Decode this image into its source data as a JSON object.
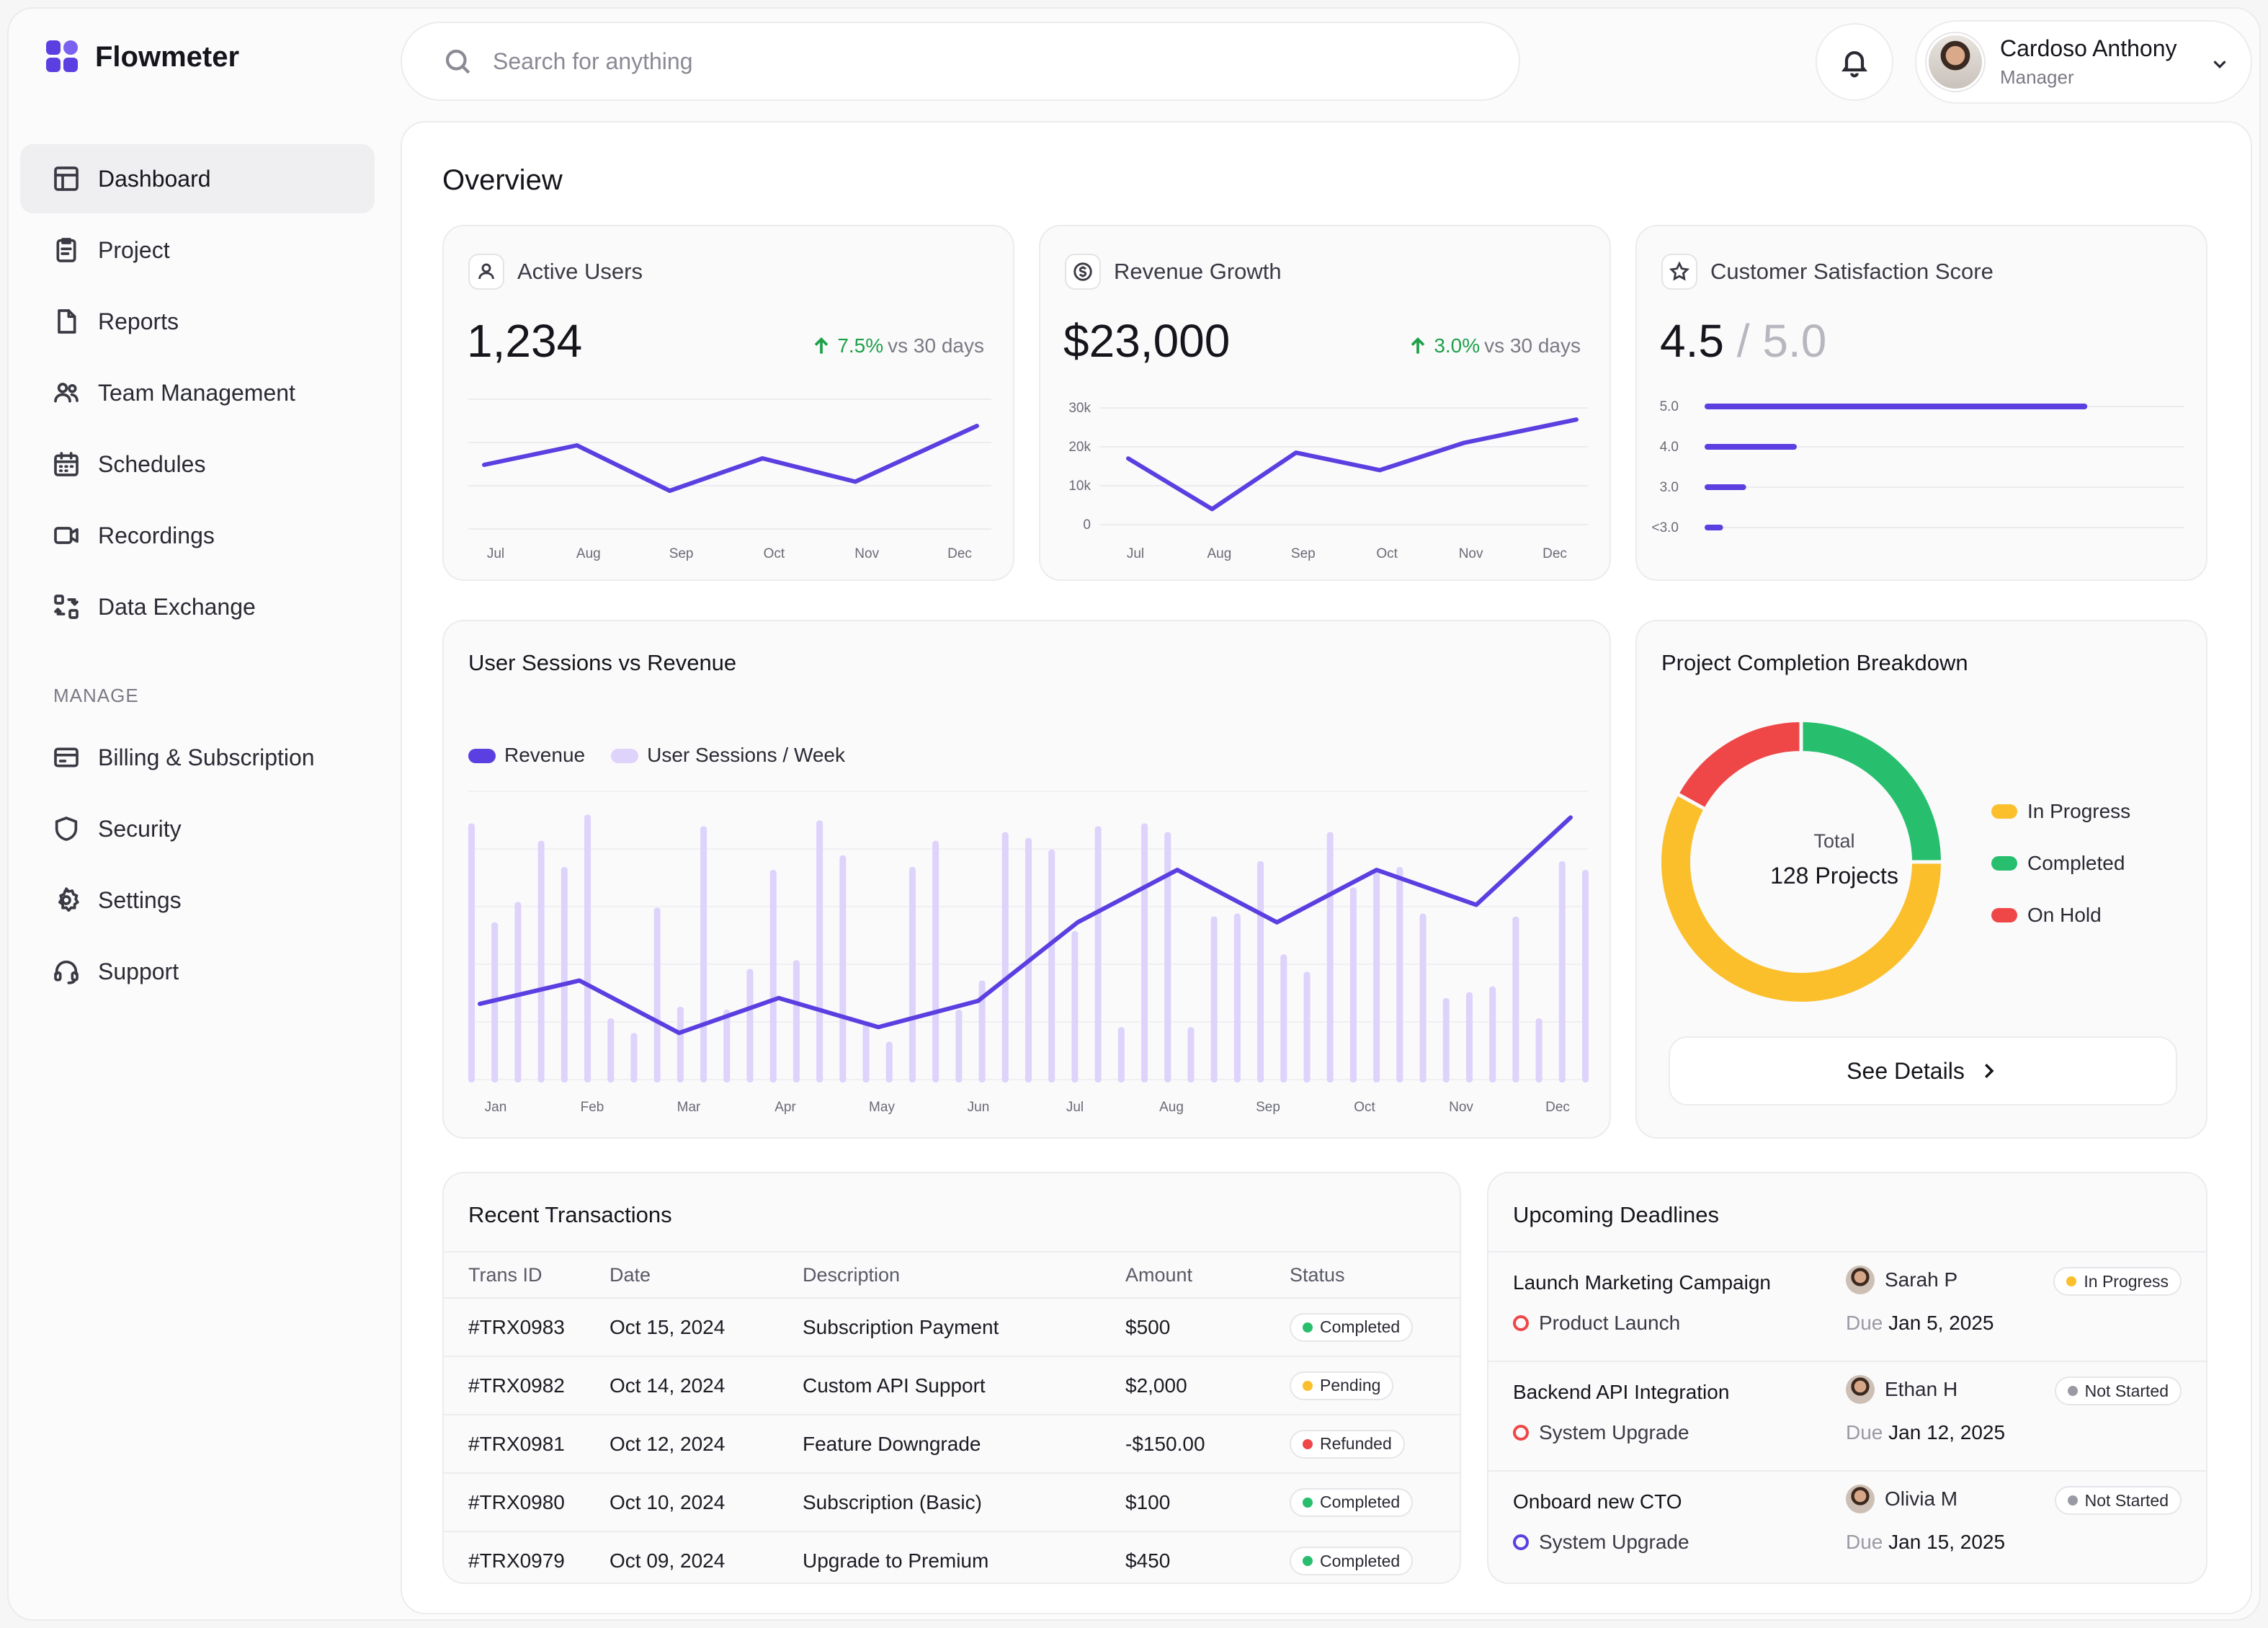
{
  "app": {
    "name": "Flowmeter"
  },
  "sidebar": {
    "items": [
      {
        "label": "Dashboard",
        "icon": "dashboard-icon"
      },
      {
        "label": "Project",
        "icon": "clipboard-icon"
      },
      {
        "label": "Reports",
        "icon": "file-icon"
      },
      {
        "label": "Team Management",
        "icon": "users-icon"
      },
      {
        "label": "Schedules",
        "icon": "calendar-icon"
      },
      {
        "label": "Recordings",
        "icon": "video-icon"
      },
      {
        "label": "Data Exchange",
        "icon": "exchange-icon"
      }
    ],
    "manage_label": "MANAGE",
    "manage_items": [
      {
        "label": "Billing & Subscription",
        "icon": "credit-card-icon"
      },
      {
        "label": "Security",
        "icon": "shield-icon"
      },
      {
        "label": "Settings",
        "icon": "gear-icon"
      },
      {
        "label": "Support",
        "icon": "headset-icon"
      }
    ]
  },
  "header": {
    "search_placeholder": "Search for anything",
    "user": {
      "name": "Cardoso Anthony",
      "role": "Manager"
    }
  },
  "overview": {
    "title": "Overview",
    "active_users": {
      "label": "Active Users",
      "value": "1,234",
      "change": "7.5%",
      "change_suffix": "vs 30 days"
    },
    "revenue_growth": {
      "label": "Revenue Growth",
      "value": "$23,000",
      "change": "3.0%",
      "change_suffix": "vs 30 days"
    },
    "satisfaction": {
      "label": "Customer Satisfaction Score",
      "value": "4.5",
      "max": "/ 5.0"
    }
  },
  "chart_data": [
    {
      "type": "line",
      "name": "active-users",
      "categories": [
        "Jul",
        "Aug",
        "Sep",
        "Oct",
        "Nov",
        "Dec"
      ],
      "values": [
        0.55,
        0.7,
        0.35,
        0.6,
        0.42,
        0.85
      ],
      "ylim": [
        0,
        1
      ],
      "grid": true
    },
    {
      "type": "line",
      "name": "revenue-growth",
      "categories": [
        "Jul",
        "Aug",
        "Sep",
        "Oct",
        "Nov",
        "Dec"
      ],
      "yticks": [
        "0",
        "10k",
        "20k",
        "30k"
      ],
      "values": [
        17000,
        4000,
        18500,
        14000,
        21000,
        27000
      ],
      "ylim": [
        0,
        30000
      ],
      "grid": true
    },
    {
      "type": "bar",
      "name": "satisfaction",
      "orientation": "horizontal",
      "categories": [
        "5.0",
        "4.0",
        "3.0",
        "<3.0"
      ],
      "values": [
        83,
        20,
        9,
        4
      ],
      "xlim": [
        0,
        100
      ]
    },
    {
      "type": "bar+line",
      "name": "sessions-vs-revenue",
      "title": "User Sessions vs Revenue",
      "legend": [
        "Revenue",
        "User Sessions / Week"
      ],
      "categories": [
        "Jan",
        "Feb",
        "Mar",
        "Apr",
        "May",
        "Jun",
        "Jul",
        "Aug",
        "Sep",
        "Oct",
        "Nov",
        "Dec"
      ],
      "sessions": [
        0.89,
        0.55,
        0.62,
        0.83,
        0.74,
        0.92,
        0.22,
        0.17,
        0.6,
        0.26,
        0.88,
        0.25,
        0.39,
        0.73,
        0.42,
        0.9,
        0.78,
        0.21,
        0.14,
        0.74,
        0.83,
        0.25,
        0.35,
        0.86,
        0.84,
        0.8,
        0.52,
        0.88,
        0.19,
        0.89,
        0.86,
        0.19,
        0.57,
        0.58,
        0.76,
        0.44,
        0.38,
        0.86,
        0.67,
        0.73,
        0.74,
        0.58,
        0.29,
        0.31,
        0.33,
        0.57,
        0.22,
        0.76,
        0.73
      ],
      "revenue": [
        0.27,
        0.35,
        0.17,
        0.29,
        0.19,
        0.28,
        0.55,
        0.73,
        0.55,
        0.73,
        0.61,
        0.91
      ],
      "ylim": [
        0,
        1
      ]
    },
    {
      "type": "pie",
      "name": "project-completion",
      "title": "Project Completion Breakdown",
      "labels": [
        "In Progress",
        "Completed",
        "On Hold"
      ],
      "values": [
        58,
        25,
        17
      ],
      "colors": [
        "#fbbf2c",
        "#27bf6e",
        "#ef4747"
      ],
      "total_label": "Total",
      "total_value": "128 Projects"
    }
  ],
  "sessions_card": {
    "title": "User Sessions vs Revenue",
    "legend_revenue": "Revenue",
    "legend_sessions": "User Sessions / Week"
  },
  "project_card": {
    "title": "Project Completion Breakdown",
    "legend": [
      "In Progress",
      "Completed",
      "On Hold"
    ],
    "total_label": "Total",
    "total_value": "128 Projects",
    "button": "See Details"
  },
  "transactions": {
    "title": "Recent Transactions",
    "headers": [
      "Trans ID",
      "Date",
      "Description",
      "Amount",
      "Status"
    ],
    "rows": [
      {
        "id": "#TRX0983",
        "date": "Oct 15, 2024",
        "desc": "Subscription Payment",
        "amount": "$500",
        "status": "Completed",
        "color": "#27bf6e"
      },
      {
        "id": "#TRX0982",
        "date": "Oct 14, 2024",
        "desc": "Custom API Support",
        "amount": "$2,000",
        "status": "Pending",
        "color": "#fbbf2c"
      },
      {
        "id": "#TRX0981",
        "date": "Oct 12, 2024",
        "desc": "Feature Downgrade",
        "amount": "-$150.00",
        "status": "Refunded",
        "color": "#ef4747"
      },
      {
        "id": "#TRX0980",
        "date": "Oct 10, 2024",
        "desc": "Subscription (Basic)",
        "amount": "$100",
        "status": "Completed",
        "color": "#27bf6e"
      },
      {
        "id": "#TRX0979",
        "date": "Oct 09, 2024",
        "desc": "Upgrade to Premium",
        "amount": "$450",
        "status": "Completed",
        "color": "#27bf6e"
      }
    ]
  },
  "deadlines": {
    "title": "Upcoming Deadlines",
    "due_label": "Due",
    "items": [
      {
        "task": "Launch Marketing Campaign",
        "project": "Product Launch",
        "ring": "#ef4747",
        "user": "Sarah P",
        "due": "Jan 5, 2025",
        "status": "In Progress",
        "color": "#fbbf2c"
      },
      {
        "task": "Backend API Integration",
        "project": "System Upgrade",
        "ring": "#ef4747",
        "user": "Ethan H",
        "due": "Jan 12, 2025",
        "status": "Not Started",
        "color": "#9a9aa5"
      },
      {
        "task": "Onboard new CTO",
        "project": "System Upgrade",
        "ring": "#5b3fe0",
        "user": "Olivia M",
        "due": "Jan 15, 2025",
        "status": "Not Started",
        "color": "#9a9aa5"
      }
    ]
  },
  "colors": {
    "accent": "#5b3fe0",
    "bar": "#ddd3fb",
    "green": "#1fa04a"
  }
}
